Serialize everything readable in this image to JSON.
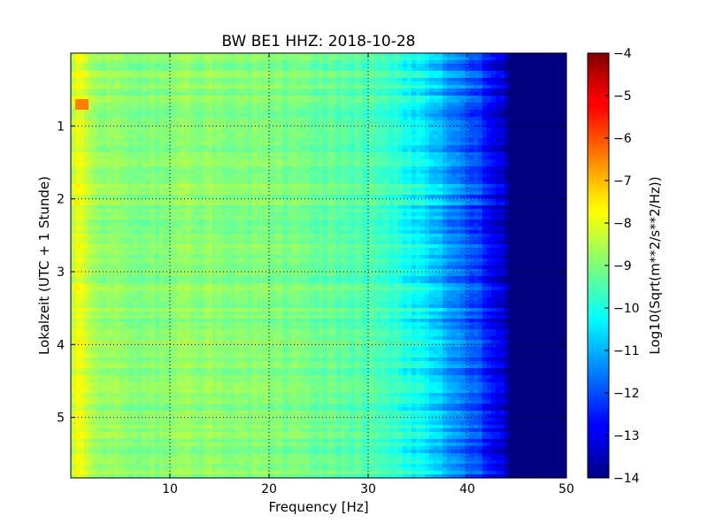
{
  "chart_data": {
    "type": "heatmap",
    "title": "BW BE1 HHZ: 2018-10-28",
    "xlabel": "Frequency [Hz]",
    "ylabel": "Lokalzeit (UTC + 1 Stunde)",
    "xlim": [
      0,
      50
    ],
    "ylim": [
      5.83,
      0.0
    ],
    "x_ticks": [
      10,
      20,
      30,
      40,
      50
    ],
    "y_ticks": [
      1,
      2,
      3,
      4,
      5
    ],
    "grid": true,
    "colormap": "jet",
    "colorbar": {
      "label": "Log10(Sqrt(m**2/s**2/Hz))",
      "range": [
        -14,
        -4
      ],
      "ticks": [
        -4,
        -5,
        -6,
        -7,
        -8,
        -9,
        -10,
        -11,
        -12,
        -13,
        -14
      ]
    },
    "spectrum_profile": {
      "frequency_hz": [
        0,
        0.5,
        1,
        2,
        3,
        5,
        8,
        12,
        16,
        20,
        25,
        30,
        33,
        35,
        37,
        39,
        41,
        42,
        43,
        43.7,
        44.2,
        50
      ],
      "level": [
        -8.5,
        -8.0,
        -7.9,
        -8.4,
        -8.7,
        -8.9,
        -8.95,
        -8.85,
        -8.9,
        -9.0,
        -9.2,
        -9.5,
        -9.9,
        -10.3,
        -10.8,
        -11.4,
        -12.1,
        -12.5,
        -12.9,
        -13.3,
        -14.0,
        -14.0
      ]
    },
    "features": [
      {
        "frequency_hz": [
          0.3,
          2.0
        ],
        "time": [
          0.62,
          0.78
        ],
        "level": -6.5
      }
    ]
  }
}
